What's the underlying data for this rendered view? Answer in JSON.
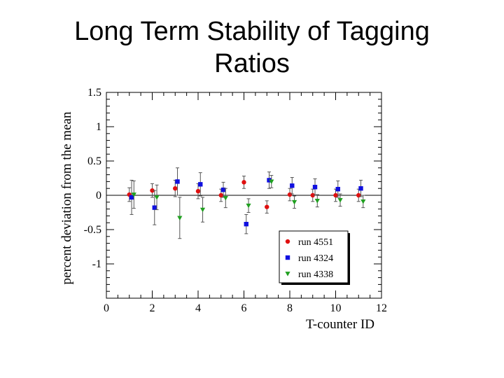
{
  "slide": {
    "title_line1": "Long Term Stability of Tagging",
    "title_line2": "Ratios"
  },
  "chart_data": {
    "type": "scatter",
    "title": "Long Term Stability of Tagging Ratios",
    "xlabel": "T-counter ID",
    "ylabel": "percent deviation from the mean",
    "xlim": [
      0,
      12
    ],
    "ylim": [
      -1.5,
      1.5
    ],
    "xticks": [
      0,
      2,
      4,
      6,
      8,
      10,
      12
    ],
    "yticks": [
      -1,
      -0.5,
      0,
      0.5,
      1,
      1.5
    ],
    "ytick_labels": [
      "-1",
      "-0.5",
      "0",
      "0.5",
      "1",
      "1.5"
    ],
    "grid": false,
    "zero_line": true,
    "legend_position": "bottom-right",
    "series": [
      {
        "name": "run 4551",
        "color": "#e01010",
        "marker": "circle",
        "points": [
          {
            "x": 1.0,
            "y": 0.01,
            "err": 0.1
          },
          {
            "x": 2.0,
            "y": 0.07,
            "err": 0.1
          },
          {
            "x": 3.0,
            "y": 0.1,
            "err": 0.12
          },
          {
            "x": 4.0,
            "y": 0.06,
            "err": 0.11
          },
          {
            "x": 5.0,
            "y": 0.0,
            "err": 0.09
          },
          {
            "x": 6.0,
            "y": 0.19,
            "err": 0.09
          },
          {
            "x": 7.0,
            "y": -0.17,
            "err": 0.09
          },
          {
            "x": 8.0,
            "y": 0.01,
            "err": 0.09
          },
          {
            "x": 9.0,
            "y": 0.0,
            "err": 0.09
          },
          {
            "x": 10.0,
            "y": 0.0,
            "err": 0.09
          },
          {
            "x": 11.0,
            "y": 0.0,
            "err": 0.09
          }
        ]
      },
      {
        "name": "run 4324",
        "color": "#1010e0",
        "marker": "square",
        "points": [
          {
            "x": 1.1,
            "y": -0.03,
            "err": 0.25
          },
          {
            "x": 2.1,
            "y": -0.18,
            "err": 0.25
          },
          {
            "x": 3.1,
            "y": 0.2,
            "err": 0.2
          },
          {
            "x": 4.1,
            "y": 0.16,
            "err": 0.17
          },
          {
            "x": 5.1,
            "y": 0.08,
            "err": 0.11
          },
          {
            "x": 6.1,
            "y": -0.42,
            "err": 0.14
          },
          {
            "x": 7.1,
            "y": 0.22,
            "err": 0.12
          },
          {
            "x": 8.1,
            "y": 0.14,
            "err": 0.12
          },
          {
            "x": 9.1,
            "y": 0.12,
            "err": 0.12
          },
          {
            "x": 10.1,
            "y": 0.09,
            "err": 0.12
          },
          {
            "x": 11.1,
            "y": 0.1,
            "err": 0.12
          }
        ]
      },
      {
        "name": "run 4338",
        "color": "#20a020",
        "marker": "triangle-down",
        "points": [
          {
            "x": 1.2,
            "y": 0.01,
            "err": 0.2
          },
          {
            "x": 2.2,
            "y": -0.03,
            "err": 0.18
          },
          {
            "x": 3.2,
            "y": -0.33,
            "err": 0.3
          },
          {
            "x": 4.2,
            "y": -0.21,
            "err": 0.18
          },
          {
            "x": 5.2,
            "y": -0.04,
            "err": 0.14
          },
          {
            "x": 6.2,
            "y": -0.15,
            "err": 0.1
          },
          {
            "x": 7.2,
            "y": 0.2,
            "err": 0.09
          },
          {
            "x": 8.2,
            "y": -0.1,
            "err": 0.09
          },
          {
            "x": 9.2,
            "y": -0.08,
            "err": 0.09
          },
          {
            "x": 10.2,
            "y": -0.07,
            "err": 0.09
          },
          {
            "x": 11.2,
            "y": -0.09,
            "err": 0.09
          }
        ]
      }
    ]
  }
}
